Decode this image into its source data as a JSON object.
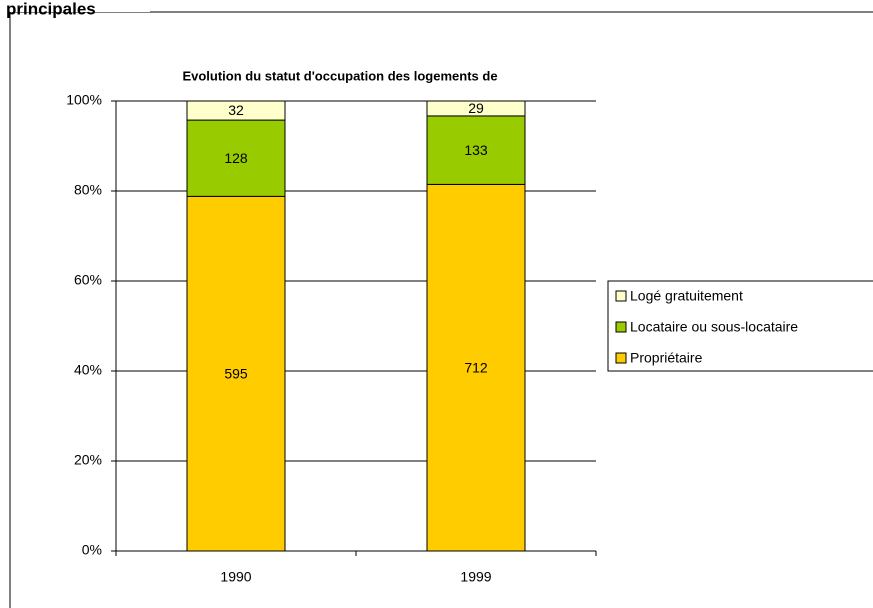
{
  "heading": "principales",
  "chart_data": {
    "type": "bar",
    "stacking": "percent",
    "title": "Evolution du statut d'occupation des logements de",
    "categories": [
      "1990",
      "1999"
    ],
    "series": [
      {
        "name": "Propriétaire",
        "color": "#ffcc00",
        "values": [
          595,
          712
        ]
      },
      {
        "name": "Locataire ou sous-locataire",
        "color": "#99cc00",
        "values": [
          128,
          133
        ]
      },
      {
        "name": "Logé gratuitement",
        "color": "#ffffcc",
        "values": [
          32,
          29
        ]
      }
    ],
    "ylim": [
      0,
      100
    ],
    "yticks": [
      {
        "value": 0,
        "label": "0%"
      },
      {
        "value": 20,
        "label": "20%"
      },
      {
        "value": 40,
        "label": "40%"
      },
      {
        "value": 60,
        "label": "60%"
      },
      {
        "value": 80,
        "label": "80%"
      },
      {
        "value": 100,
        "label": "100%"
      }
    ],
    "grid": true,
    "legend": "right"
  }
}
